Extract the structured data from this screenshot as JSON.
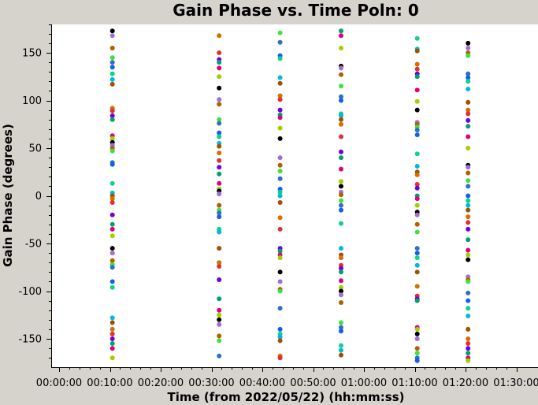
{
  "chart_data": {
    "type": "scatter",
    "title": "Gain Phase vs. Time Poln: 0",
    "xlabel": "Time (from 2022/05/22) (hh:mm:ss)",
    "ylabel": "Gain Phase (degrees)",
    "x_unit": "hh:mm:ss",
    "xlim": [
      "00:00:00",
      "01:30:00"
    ],
    "ylim": [
      -180,
      180
    ],
    "x_ticks": [
      "00:00:00",
      "00:10:00",
      "00:20:00",
      "00:30:00",
      "00:40:00",
      "00:50:00",
      "01:00:00",
      "01:10:00",
      "01:20:00",
      "01:30:00"
    ],
    "y_ticks": [
      -150,
      -100,
      -50,
      0,
      50,
      100,
      150
    ],
    "grid": false,
    "legend": "none",
    "point_colors": [
      "#000000",
      "#e0007a",
      "#7000e0",
      "#d07000",
      "#00b8e0",
      "#1060f0",
      "#40e040",
      "#a070d0",
      "#a0d000",
      "#00a070",
      "#e03030",
      "#a05000",
      "#10d090",
      "#3070c0",
      "#b06000"
    ],
    "scans": [
      {
        "time": "00:10:30",
        "phases": [
          173,
          168,
          155,
          145,
          140,
          135,
          128,
          122,
          117,
          92,
          89,
          84,
          80,
          63,
          60,
          56,
          53,
          50,
          47,
          35,
          33,
          13,
          3,
          0,
          -3,
          -7,
          -20,
          -30,
          -35,
          -42,
          -55,
          -60,
          -68,
          -72,
          -75,
          -90,
          -96,
          -128,
          -133,
          -140,
          -145,
          -150,
          -155,
          -160,
          -170
        ]
      },
      {
        "time": "00:31:30",
        "phases": [
          168,
          150,
          143,
          140,
          134,
          125,
          113,
          101,
          96,
          80,
          76,
          66,
          62,
          55,
          52,
          45,
          37,
          30,
          23,
          13,
          7,
          5,
          2,
          -10,
          -15,
          -18,
          -22,
          -35,
          -38,
          -55,
          -70,
          -74,
          -88,
          -108,
          -120,
          -125,
          -130,
          -135,
          -147,
          -152,
          -168
        ]
      },
      {
        "time": "00:43:30",
        "phases": [
          171,
          161,
          147,
          144,
          124,
          118,
          105,
          101,
          90,
          85,
          82,
          71,
          60,
          40,
          32,
          26,
          18,
          7,
          4,
          0,
          -7,
          -23,
          -35,
          -55,
          -58,
          -62,
          -65,
          -80,
          -90,
          -98,
          -100,
          -118,
          -140,
          -145,
          -148,
          -152,
          -168,
          -170
        ]
      },
      {
        "time": "00:55:30",
        "phases": [
          173,
          168,
          155,
          136,
          134,
          127,
          115,
          104,
          100,
          86,
          84,
          80,
          75,
          62,
          46,
          40,
          28,
          15,
          10,
          4,
          1,
          -5,
          -10,
          -15,
          -29,
          -55,
          -62,
          -65,
          -73,
          -76,
          -80,
          -89,
          -96,
          -100,
          -104,
          -112,
          -133,
          -138,
          -142,
          -157,
          -162,
          -167
        ]
      },
      {
        "time": "01:10:30",
        "phases": [
          165,
          154,
          152,
          138,
          133,
          128,
          125,
          111,
          99,
          90,
          77,
          75,
          72,
          69,
          64,
          44,
          31,
          25,
          22,
          12,
          8,
          0,
          -3,
          -10,
          -17,
          -20,
          -30,
          -38,
          -55,
          -60,
          -65,
          -73,
          -80,
          -95,
          -105,
          -108,
          -110,
          -138,
          -140,
          -145,
          -150,
          -160,
          -165,
          -170,
          -173
        ]
      },
      {
        "time": "01:20:30",
        "phases": [
          160,
          155,
          150,
          147,
          128,
          124,
          120,
          112,
          98,
          90,
          86,
          79,
          73,
          62,
          50,
          32,
          30,
          24,
          16,
          10,
          0,
          -5,
          -10,
          -15,
          -22,
          -28,
          -35,
          -46,
          -57,
          -62,
          -67,
          -85,
          -88,
          -90,
          -102,
          -110,
          -118,
          -126,
          -140,
          -150,
          -155,
          -160,
          -165,
          -170,
          -173
        ]
      }
    ]
  }
}
